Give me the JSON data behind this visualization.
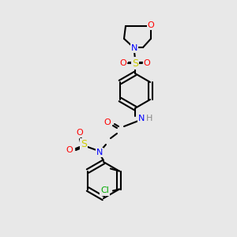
{
  "bg_color": "#e8e8e8",
  "bond_color": "#000000",
  "bond_width": 1.5,
  "atom_colors": {
    "O": "#ff0000",
    "N": "#0000ff",
    "S": "#cccc00",
    "Cl": "#00aa00",
    "C": "#000000",
    "H": "#888888"
  }
}
